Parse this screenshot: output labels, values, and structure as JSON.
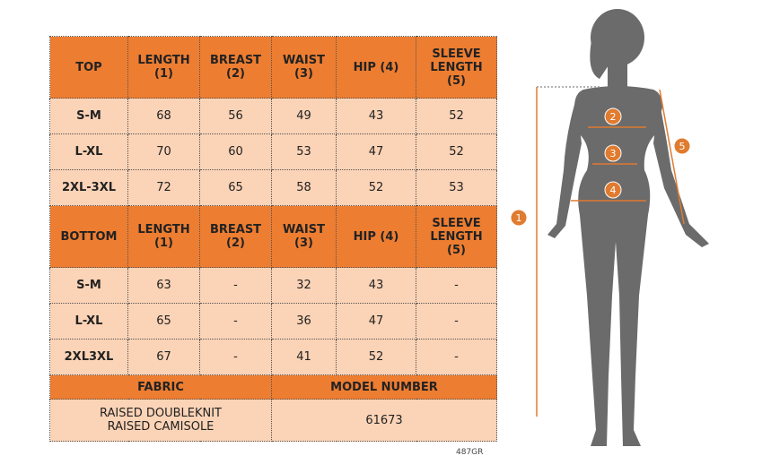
{
  "top": {
    "header": [
      "TOP",
      "LENGTH (1)",
      "BREAST (2)",
      "WAIST (3)",
      "HIP (4)",
      "SLEEVE LENGTH (5)"
    ],
    "rows": [
      [
        "S-M",
        68,
        56,
        49,
        43,
        52
      ],
      [
        "L-XL",
        70,
        60,
        53,
        47,
        52
      ],
      [
        "2XL-3XL",
        72,
        65,
        58,
        52,
        53
      ]
    ]
  },
  "bottom": {
    "header": [
      "BOTTOM",
      "LENGTH (1)",
      "BREAST (2)",
      "WAIST (3)",
      "HIP (4)",
      "SLEEVE LENGTH (5)"
    ],
    "rows": [
      [
        "S-M",
        63,
        "-",
        32,
        43,
        "-"
      ],
      [
        "L-XL",
        65,
        "-",
        36,
        47,
        "-"
      ],
      [
        "2XL3XL",
        67,
        "-",
        41,
        52,
        "-"
      ]
    ]
  },
  "fabric": {
    "header": "FABRIC",
    "value": [
      "RAISED DOUBLEKNIT",
      "RAISED CAMISOLE"
    ]
  },
  "model": {
    "header": "MODEL NUMBER",
    "value": 61673
  },
  "figure": {
    "markers": [
      1,
      2,
      3,
      4,
      5
    ]
  },
  "code": "487GR"
}
